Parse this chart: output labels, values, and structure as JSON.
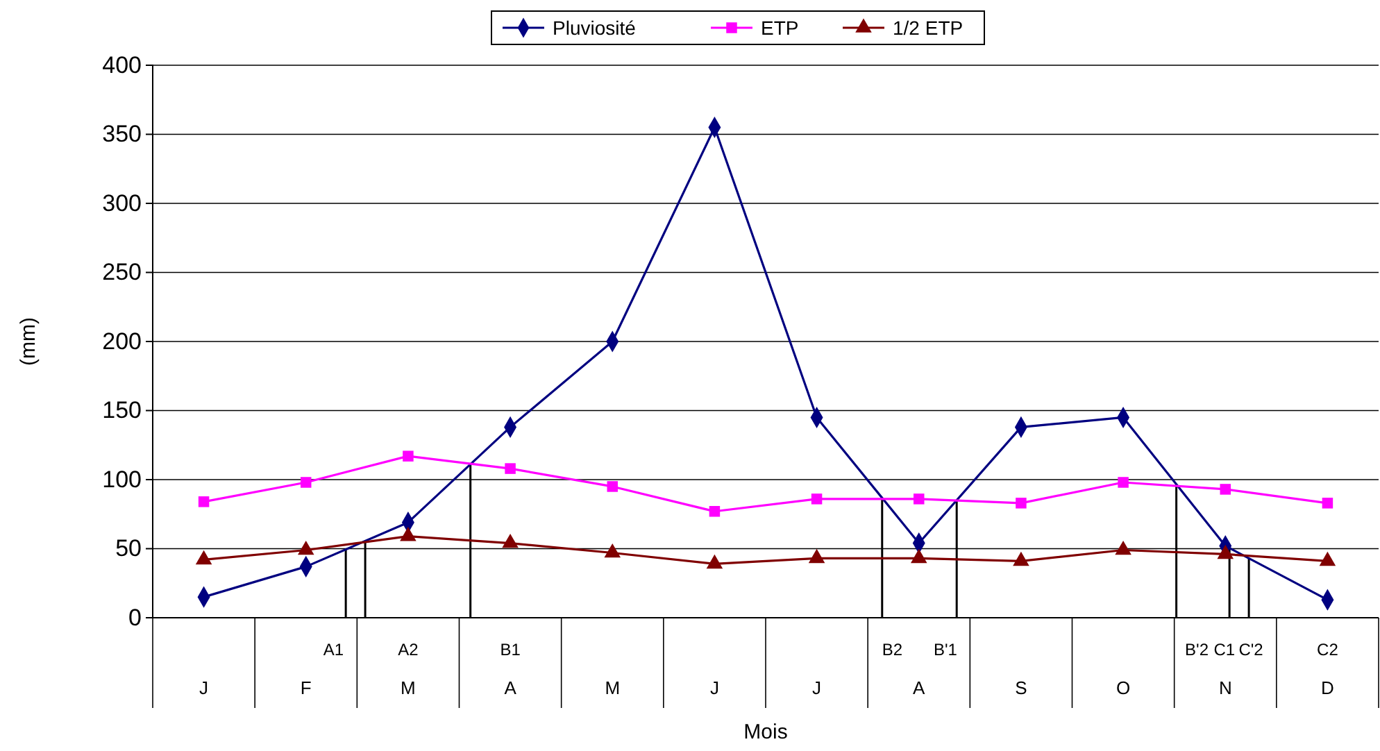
{
  "chart_data": {
    "type": "line",
    "xlabel": "Mois",
    "ylabel": "(mm)",
    "categories": [
      "J",
      "F",
      "M",
      "A",
      "M",
      "J",
      "J",
      "A",
      "S",
      "O",
      "N",
      "D"
    ],
    "ylim": [
      0,
      400
    ],
    "yticks": [
      0,
      50,
      100,
      150,
      200,
      250,
      300,
      350,
      400
    ],
    "grid": "y",
    "legend": "top",
    "series": [
      {
        "name": "Pluviosité",
        "color": "#000080",
        "marker": "diamond",
        "values": [
          15,
          37,
          69,
          138,
          200,
          355,
          145,
          54,
          138,
          145,
          52,
          13
        ]
      },
      {
        "name": "ETP",
        "color": "#ff00ff",
        "marker": "square",
        "values": [
          84,
          98,
          117,
          108,
          95,
          77,
          86,
          86,
          83,
          98,
          93,
          83
        ]
      },
      {
        "name": "1/2 ETP",
        "color": "#800000",
        "marker": "triangle",
        "values": [
          42,
          49,
          59,
          54,
          47,
          39,
          43,
          43,
          41,
          49,
          46,
          41
        ]
      }
    ],
    "annotations": [
      "A1",
      "A2",
      "B1",
      "B2",
      "B'1",
      "B'2",
      "C1",
      "C'2",
      "C2"
    ]
  }
}
